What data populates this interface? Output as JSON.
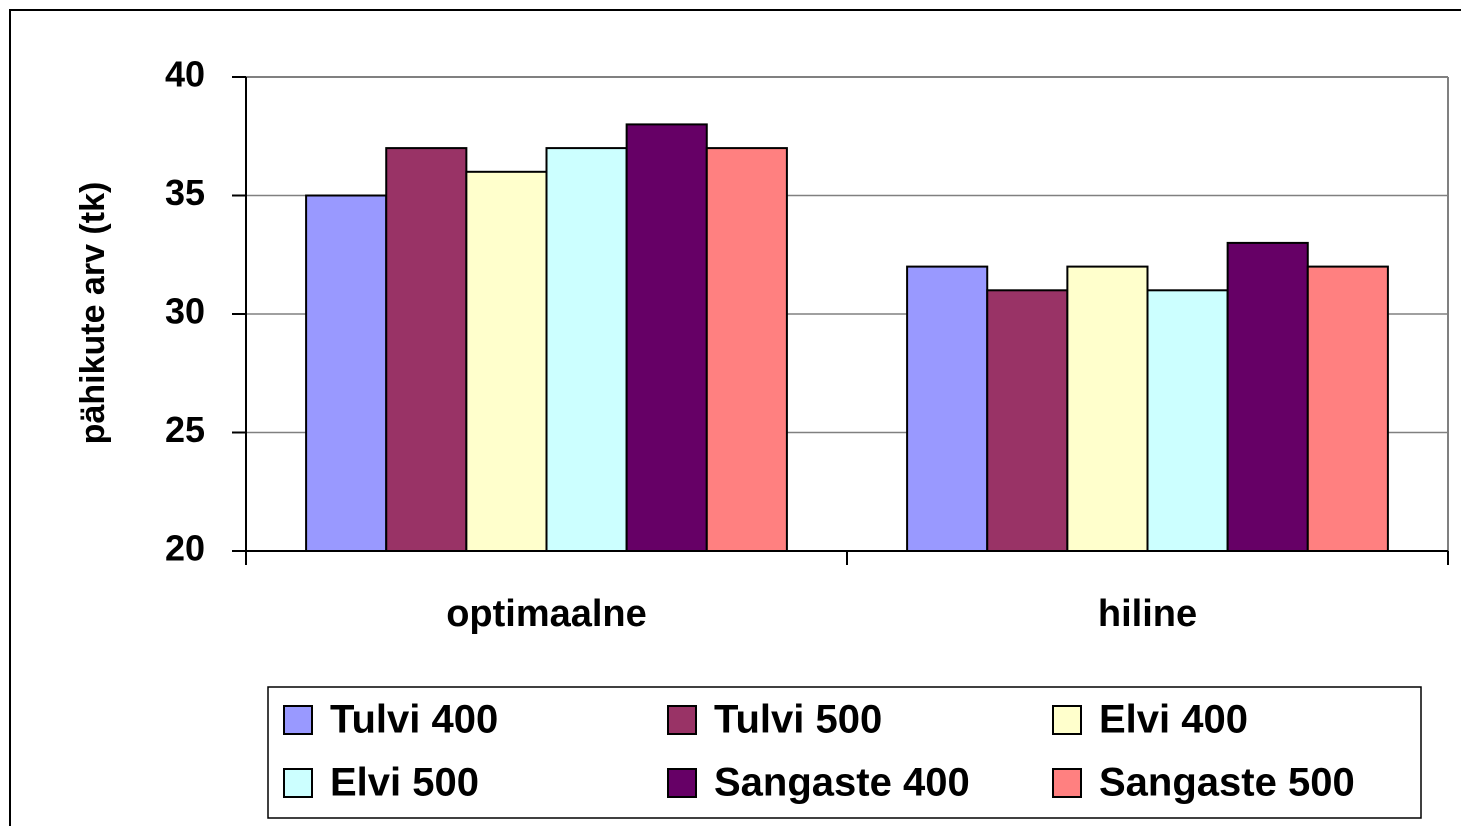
{
  "chart_data": {
    "type": "bar",
    "y_label": "pähikute arv (tk)",
    "categories": [
      "optimaalne",
      "hiline"
    ],
    "series": [
      {
        "name": "Tulvi 400",
        "color": "#9999ff",
        "values": [
          35,
          32
        ]
      },
      {
        "name": "Tulvi 500",
        "color": "#993366",
        "values": [
          37,
          31
        ]
      },
      {
        "name": "Elvi 400",
        "color": "#ffffcc",
        "values": [
          36,
          32
        ]
      },
      {
        "name": "Elvi 500",
        "color": "#ccffff",
        "values": [
          37,
          31
        ]
      },
      {
        "name": "Sangaste 400",
        "color": "#660066",
        "values": [
          38,
          33
        ]
      },
      {
        "name": "Sangaste 500",
        "color": "#ff8080",
        "values": [
          37,
          32
        ]
      }
    ],
    "ylim": [
      20,
      40
    ],
    "yticks": [
      20,
      25,
      30,
      35,
      40
    ],
    "grid": true,
    "legend": "bottom"
  }
}
